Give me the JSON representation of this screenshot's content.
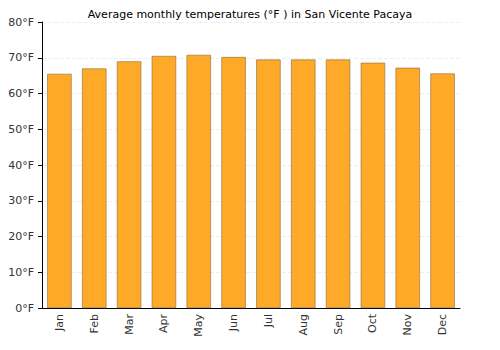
{
  "chart_data": {
    "type": "bar",
    "title": "Average monthly temperatures (°F ) in San Vicente Pacaya",
    "categories": [
      "Jan",
      "Feb",
      "Mar",
      "Apr",
      "May",
      "Jun",
      "Jul",
      "Aug",
      "Sep",
      "Oct",
      "Nov",
      "Dec"
    ],
    "values": [
      65.5,
      67,
      69,
      70.5,
      70.8,
      70.2,
      69.5,
      69.5,
      69.5,
      68.6,
      67.2,
      65.6
    ],
    "color": "#ffa929",
    "ylim": [
      0,
      80
    ],
    "yticks": [
      {
        "value": 0,
        "label": "0°F"
      },
      {
        "value": 10,
        "label": "10°F"
      },
      {
        "value": 20,
        "label": "20°F"
      },
      {
        "value": 30,
        "label": "30°F"
      },
      {
        "value": 40,
        "label": "40°F"
      },
      {
        "value": 50,
        "label": "50°F"
      },
      {
        "value": 60,
        "label": "60°F"
      },
      {
        "value": 70,
        "label": "70°F"
      },
      {
        "value": 80,
        "label": "80°F"
      }
    ],
    "grid": true
  }
}
